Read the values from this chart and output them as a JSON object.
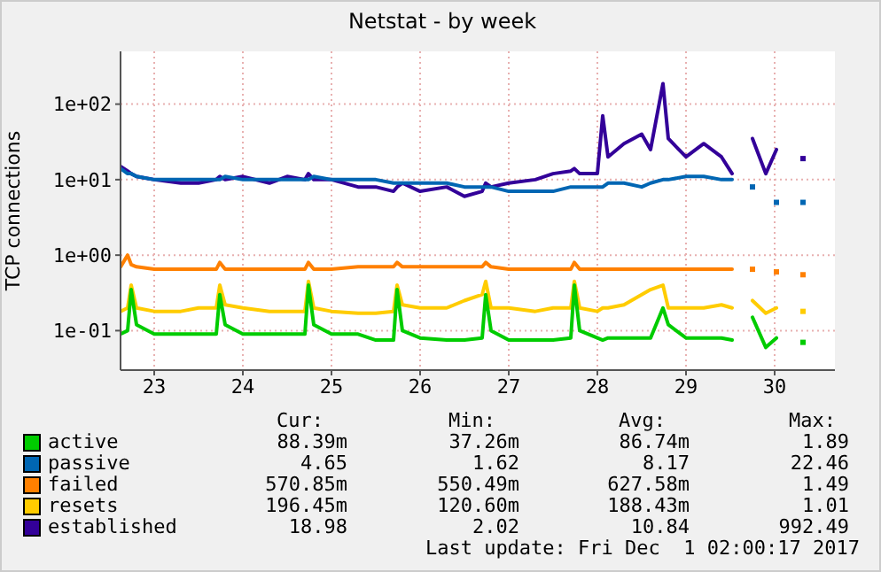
{
  "chart_data": {
    "type": "line",
    "title": "Netstat - by week",
    "ylabel": "TCP connections",
    "log": "y",
    "grid": true,
    "legend": "bottom",
    "marker": "none",
    "line_style": "solid",
    "x": [
      23.12,
      23.2,
      23.24,
      23.3,
      23.5,
      23.8,
      24.0,
      24.2,
      24.24,
      24.3,
      24.5,
      24.8,
      25.0,
      25.2,
      25.24,
      25.3,
      25.5,
      25.8,
      26.0,
      26.2,
      26.24,
      26.3,
      26.5,
      26.8,
      27.0,
      27.2,
      27.24,
      27.3,
      27.5,
      27.8,
      28.0,
      28.2,
      28.24,
      28.3,
      28.5,
      28.56,
      28.62,
      28.8,
      29.0,
      29.1,
      29.24,
      29.3,
      29.5,
      29.7,
      29.9,
      30.02,
      30.1,
      30.25,
      30.4,
      30.52,
      30.7,
      30.82
    ],
    "xlim": [
      23.12,
      31.18
    ],
    "xticks": [
      {
        "value": 23.5,
        "label": "23"
      },
      {
        "value": 24.5,
        "label": "24"
      },
      {
        "value": 25.5,
        "label": "25"
      },
      {
        "value": 26.5,
        "label": "26"
      },
      {
        "value": 27.5,
        "label": "27"
      },
      {
        "value": 28.5,
        "label": "28"
      },
      {
        "value": 29.5,
        "label": "29"
      },
      {
        "value": 30.5,
        "label": "30"
      }
    ],
    "ylim": [
      0.03,
      500
    ],
    "yticks": [
      {
        "value": 0.1,
        "label": "1e-01"
      },
      {
        "value": 1,
        "label": "1e+00"
      },
      {
        "value": 10,
        "label": "1e+01"
      },
      {
        "value": 100,
        "label": "1e+02"
      }
    ],
    "series": [
      {
        "name": "active",
        "color": "#00cc00",
        "values": [
          0.09,
          0.1,
          0.35,
          0.12,
          0.09,
          0.09,
          0.09,
          0.09,
          0.3,
          0.12,
          0.09,
          0.09,
          0.09,
          0.09,
          0.4,
          0.12,
          0.09,
          0.09,
          0.075,
          0.075,
          0.35,
          0.1,
          0.08,
          0.075,
          0.075,
          0.08,
          0.3,
          0.1,
          0.075,
          0.075,
          0.075,
          0.08,
          0.4,
          0.1,
          0.08,
          0.075,
          0.08,
          0.08,
          0.08,
          0.08,
          0.2,
          0.12,
          0.08,
          0.08,
          0.08,
          0.075,
          null,
          0.15,
          0.06,
          0.08,
          null,
          0.07
        ]
      },
      {
        "name": "passive",
        "color": "#0066b3",
        "values": [
          14,
          12,
          12,
          11,
          10,
          10,
          10,
          10,
          10,
          11,
          10,
          10,
          10,
          10,
          10,
          11,
          10,
          10,
          10,
          9,
          9,
          9,
          9,
          9,
          8,
          8,
          8,
          8,
          7,
          7,
          7,
          8,
          8,
          8,
          8,
          8,
          9,
          9,
          8,
          9,
          10,
          10,
          11,
          11,
          10,
          10,
          null,
          8,
          null,
          5,
          null,
          5
        ]
      },
      {
        "name": "failed",
        "color": "#ff8000",
        "values": [
          0.7,
          1.0,
          0.75,
          0.7,
          0.65,
          0.65,
          0.65,
          0.65,
          0.8,
          0.65,
          0.65,
          0.65,
          0.65,
          0.65,
          0.8,
          0.65,
          0.65,
          0.7,
          0.7,
          0.7,
          0.8,
          0.7,
          0.7,
          0.7,
          0.7,
          0.7,
          0.8,
          0.7,
          0.65,
          0.65,
          0.65,
          0.65,
          0.8,
          0.65,
          0.65,
          0.65,
          0.65,
          0.65,
          0.65,
          0.65,
          0.65,
          0.65,
          0.65,
          0.65,
          0.65,
          0.65,
          null,
          0.65,
          null,
          0.6,
          null,
          0.55
        ]
      },
      {
        "name": "resets",
        "color": "#ffcc00",
        "values": [
          0.18,
          0.2,
          0.4,
          0.2,
          0.18,
          0.18,
          0.2,
          0.2,
          0.4,
          0.22,
          0.2,
          0.18,
          0.18,
          0.18,
          0.45,
          0.2,
          0.18,
          0.17,
          0.17,
          0.18,
          0.4,
          0.22,
          0.2,
          0.2,
          0.25,
          0.3,
          0.45,
          0.2,
          0.2,
          0.18,
          0.2,
          0.2,
          0.45,
          0.2,
          0.18,
          0.2,
          0.2,
          0.22,
          0.3,
          0.35,
          0.4,
          0.2,
          0.2,
          0.2,
          0.22,
          0.2,
          null,
          0.25,
          0.17,
          0.2,
          null,
          0.18
        ]
      },
      {
        "name": "established",
        "color": "#330099",
        "values": [
          15,
          13,
          12,
          11,
          10,
          9,
          9,
          10,
          11,
          10,
          11,
          9,
          11,
          10,
          12,
          10,
          10,
          8,
          8,
          7,
          8,
          9,
          7,
          8,
          6,
          7,
          9,
          8,
          9,
          10,
          12,
          13,
          14,
          12,
          12,
          70,
          20,
          30,
          40,
          25,
          187,
          35,
          20,
          30,
          20,
          12,
          null,
          35,
          12,
          25,
          null,
          19
        ]
      }
    ],
    "annotations": [
      "Cur:",
      "Min:",
      "Avg:",
      "Max:",
      "88.39m",
      "37.26m",
      "86.74m",
      "1.89",
      "4.65",
      "1.62",
      "8.17",
      "22.46",
      "570.85m",
      "550.49m",
      "627.58m",
      "1.49",
      "196.45m",
      "120.60m",
      "188.43m",
      "1.01",
      "18.98",
      "2.02",
      "10.84",
      "992.49",
      "Last update: Fri Dec  1 02:00:17 2017"
    ]
  }
}
